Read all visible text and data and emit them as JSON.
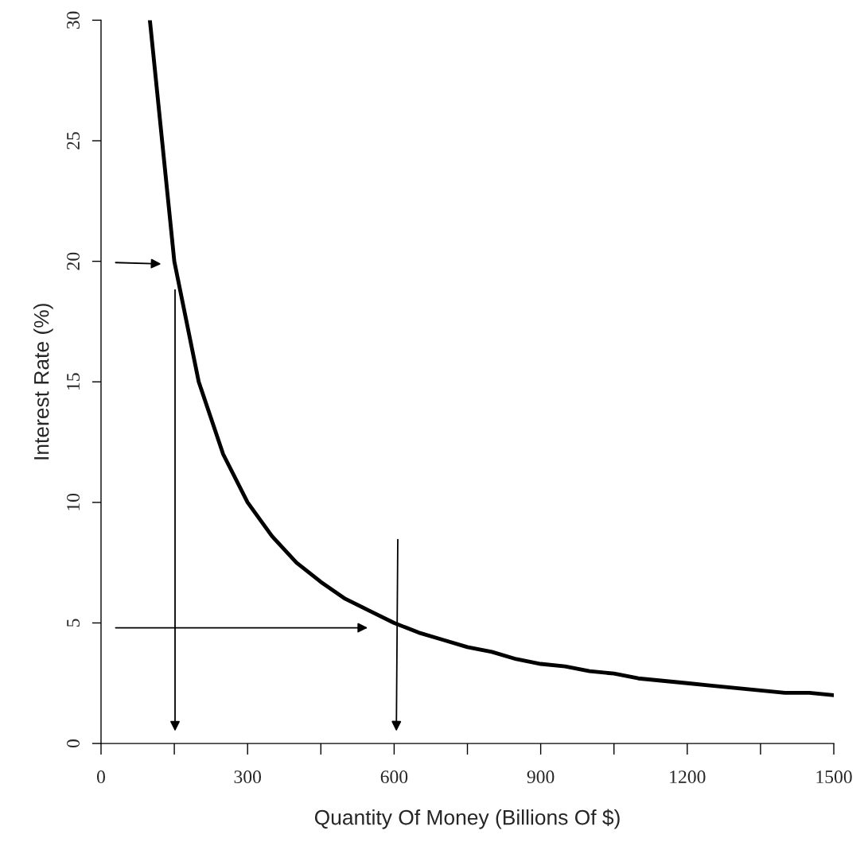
{
  "chart_data": {
    "type": "line",
    "xlabel": "Quantity Of Money (Billions Of $)",
    "ylabel": "Interest Rate (%)",
    "x": [
      100,
      150,
      200,
      250,
      300,
      350,
      400,
      450,
      500,
      550,
      600,
      650,
      700,
      750,
      800,
      850,
      900,
      950,
      1000,
      1050,
      1100,
      1150,
      1200,
      1250,
      1300,
      1350,
      1400,
      1450,
      1500
    ],
    "series": [
      {
        "color": "#000000",
        "values": [
          30,
          20,
          15,
          12,
          10,
          8.6,
          7.5,
          6.7,
          6,
          5.5,
          5,
          4.6,
          4.3,
          4,
          3.8,
          3.5,
          3.3,
          3.2,
          3,
          2.9,
          2.7,
          2.6,
          2.5,
          2.4,
          2.3,
          2.2,
          2.1,
          2.1,
          2
        ]
      }
    ],
    "xlim": [
      0,
      1500
    ],
    "ylim": [
      0,
      30
    ],
    "xticks": [
      0,
      {
        "value": 150,
        "label": null
      },
      300,
      {
        "value": 450,
        "label": null
      },
      600,
      {
        "value": 750,
        "label": null
      },
      900,
      {
        "value": 1050,
        "label": null
      },
      1200,
      {
        "value": 1350,
        "label": null
      },
      1500
    ],
    "yticks": [
      0,
      5,
      10,
      15,
      20,
      25,
      30
    ],
    "grid": false,
    "legend": false,
    "marker": "none",
    "line_style": "solid"
  }
}
